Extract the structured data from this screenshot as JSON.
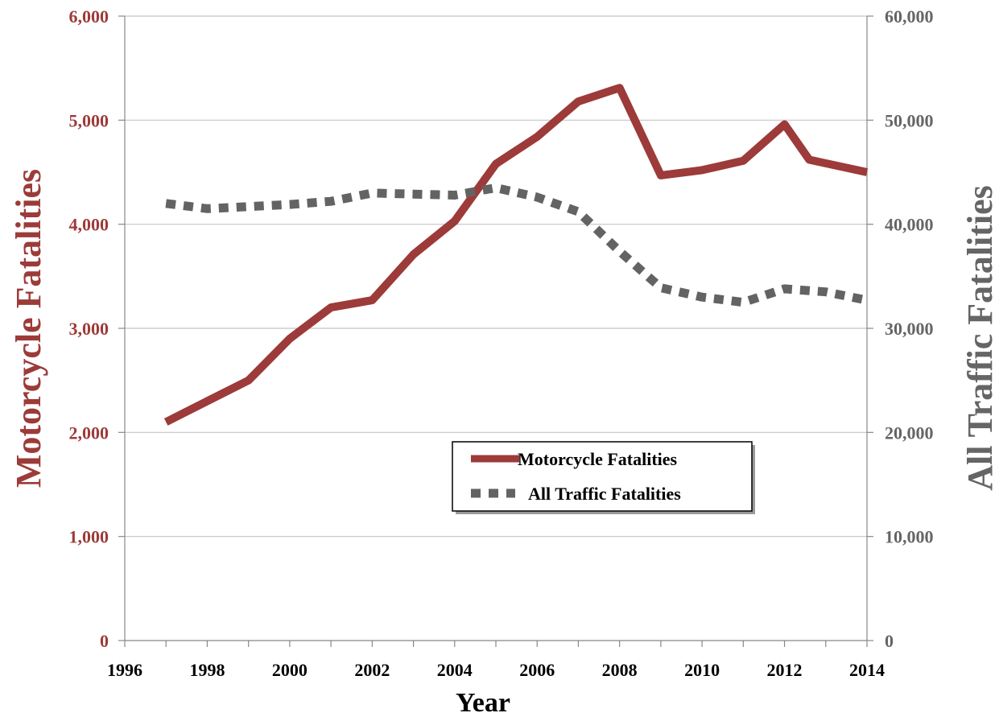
{
  "chart_data": {
    "type": "line",
    "xlabel": "Year",
    "ylabel_left": "Motorcycle Fatalities",
    "ylabel_right": "All Traffic Fatalities",
    "x_ticks": [
      "1996",
      "1998",
      "2000",
      "2002",
      "2004",
      "2006",
      "2008",
      "2010",
      "2012",
      "2014"
    ],
    "xlim": [
      1996,
      2014
    ],
    "y_left_ticks": [
      "0",
      "1,000",
      "2,000",
      "3,000",
      "4,000",
      "5,000",
      "6,000"
    ],
    "y_left_lim": [
      0,
      6000
    ],
    "y_right_ticks": [
      "0",
      "10,000",
      "20,000",
      "30,000",
      "40,000",
      "50,000",
      "60,000"
    ],
    "y_right_lim": [
      0,
      60000
    ],
    "grid": "horizontal",
    "legend_position": "center-right",
    "series": [
      {
        "name": "Motorcycle Fatalities",
        "axis": "left",
        "style": "solid",
        "color": "#9c3b39",
        "x": [
          1997,
          1998,
          1999,
          2000,
          2001,
          2002,
          2003,
          2004,
          2005,
          2006,
          2007,
          2008,
          2009,
          2010,
          2011,
          2012,
          2012.6,
          2014
        ],
        "values": [
          2100,
          2300,
          2500,
          2900,
          3200,
          3270,
          3710,
          4030,
          4580,
          4840,
          5180,
          5310,
          4470,
          4520,
          4610,
          4960,
          4620,
          4500
        ]
      },
      {
        "name": "All Traffic Fatalities",
        "axis": "right",
        "style": "dotted",
        "color": "#636363",
        "x": [
          1997,
          1998,
          1999,
          2000,
          2001,
          2002,
          2003,
          2004,
          2005,
          2006,
          2007,
          2008,
          2009,
          2010,
          2011,
          2012,
          2013,
          2014
        ],
        "values": [
          42000,
          41500,
          41700,
          41900,
          42200,
          43000,
          42900,
          42800,
          43500,
          42600,
          41200,
          37400,
          33900,
          33000,
          32500,
          33800,
          33500,
          32700
        ]
      }
    ]
  },
  "colors": {
    "left_axis_text": "#9c3b39",
    "right_axis_text": "#656565",
    "grid": "#c4c4c4",
    "axis": "#888888"
  }
}
